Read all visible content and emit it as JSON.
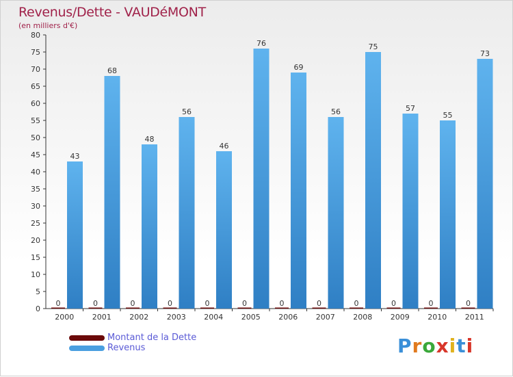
{
  "chart_data": {
    "type": "bar",
    "title": "Revenus/Dette - VAUDéMONT",
    "subtitle": "(en milliers d'€)",
    "xlabel": "",
    "ylabel": "",
    "ylim": [
      0,
      80
    ],
    "yticks": [
      0,
      5,
      10,
      15,
      20,
      25,
      30,
      35,
      40,
      45,
      50,
      55,
      60,
      65,
      70,
      75,
      80
    ],
    "categories": [
      "2000",
      "2001",
      "2002",
      "2003",
      "2004",
      "2005",
      "2006",
      "2007",
      "2008",
      "2009",
      "2010",
      "2011"
    ],
    "series": [
      {
        "name": "Montant de la Dette",
        "color": "#6b0a0a",
        "values": [
          0,
          0,
          0,
          0,
          0,
          0,
          0,
          0,
          0,
          0,
          0,
          0
        ]
      },
      {
        "name": "Revenus",
        "color": "#4a9fe0",
        "values": [
          43,
          68,
          48,
          56,
          46,
          76,
          69,
          56,
          75,
          57,
          55,
          73
        ]
      }
    ],
    "grid": false,
    "legend_position": "bottom-left"
  },
  "logo": {
    "text": "Proxiti",
    "letter_colors": [
      "#3a8fd8",
      "#e07a1e",
      "#3aa83a",
      "#d8362a",
      "#e0b21e",
      "#3a8fd8",
      "#d8362a"
    ]
  }
}
